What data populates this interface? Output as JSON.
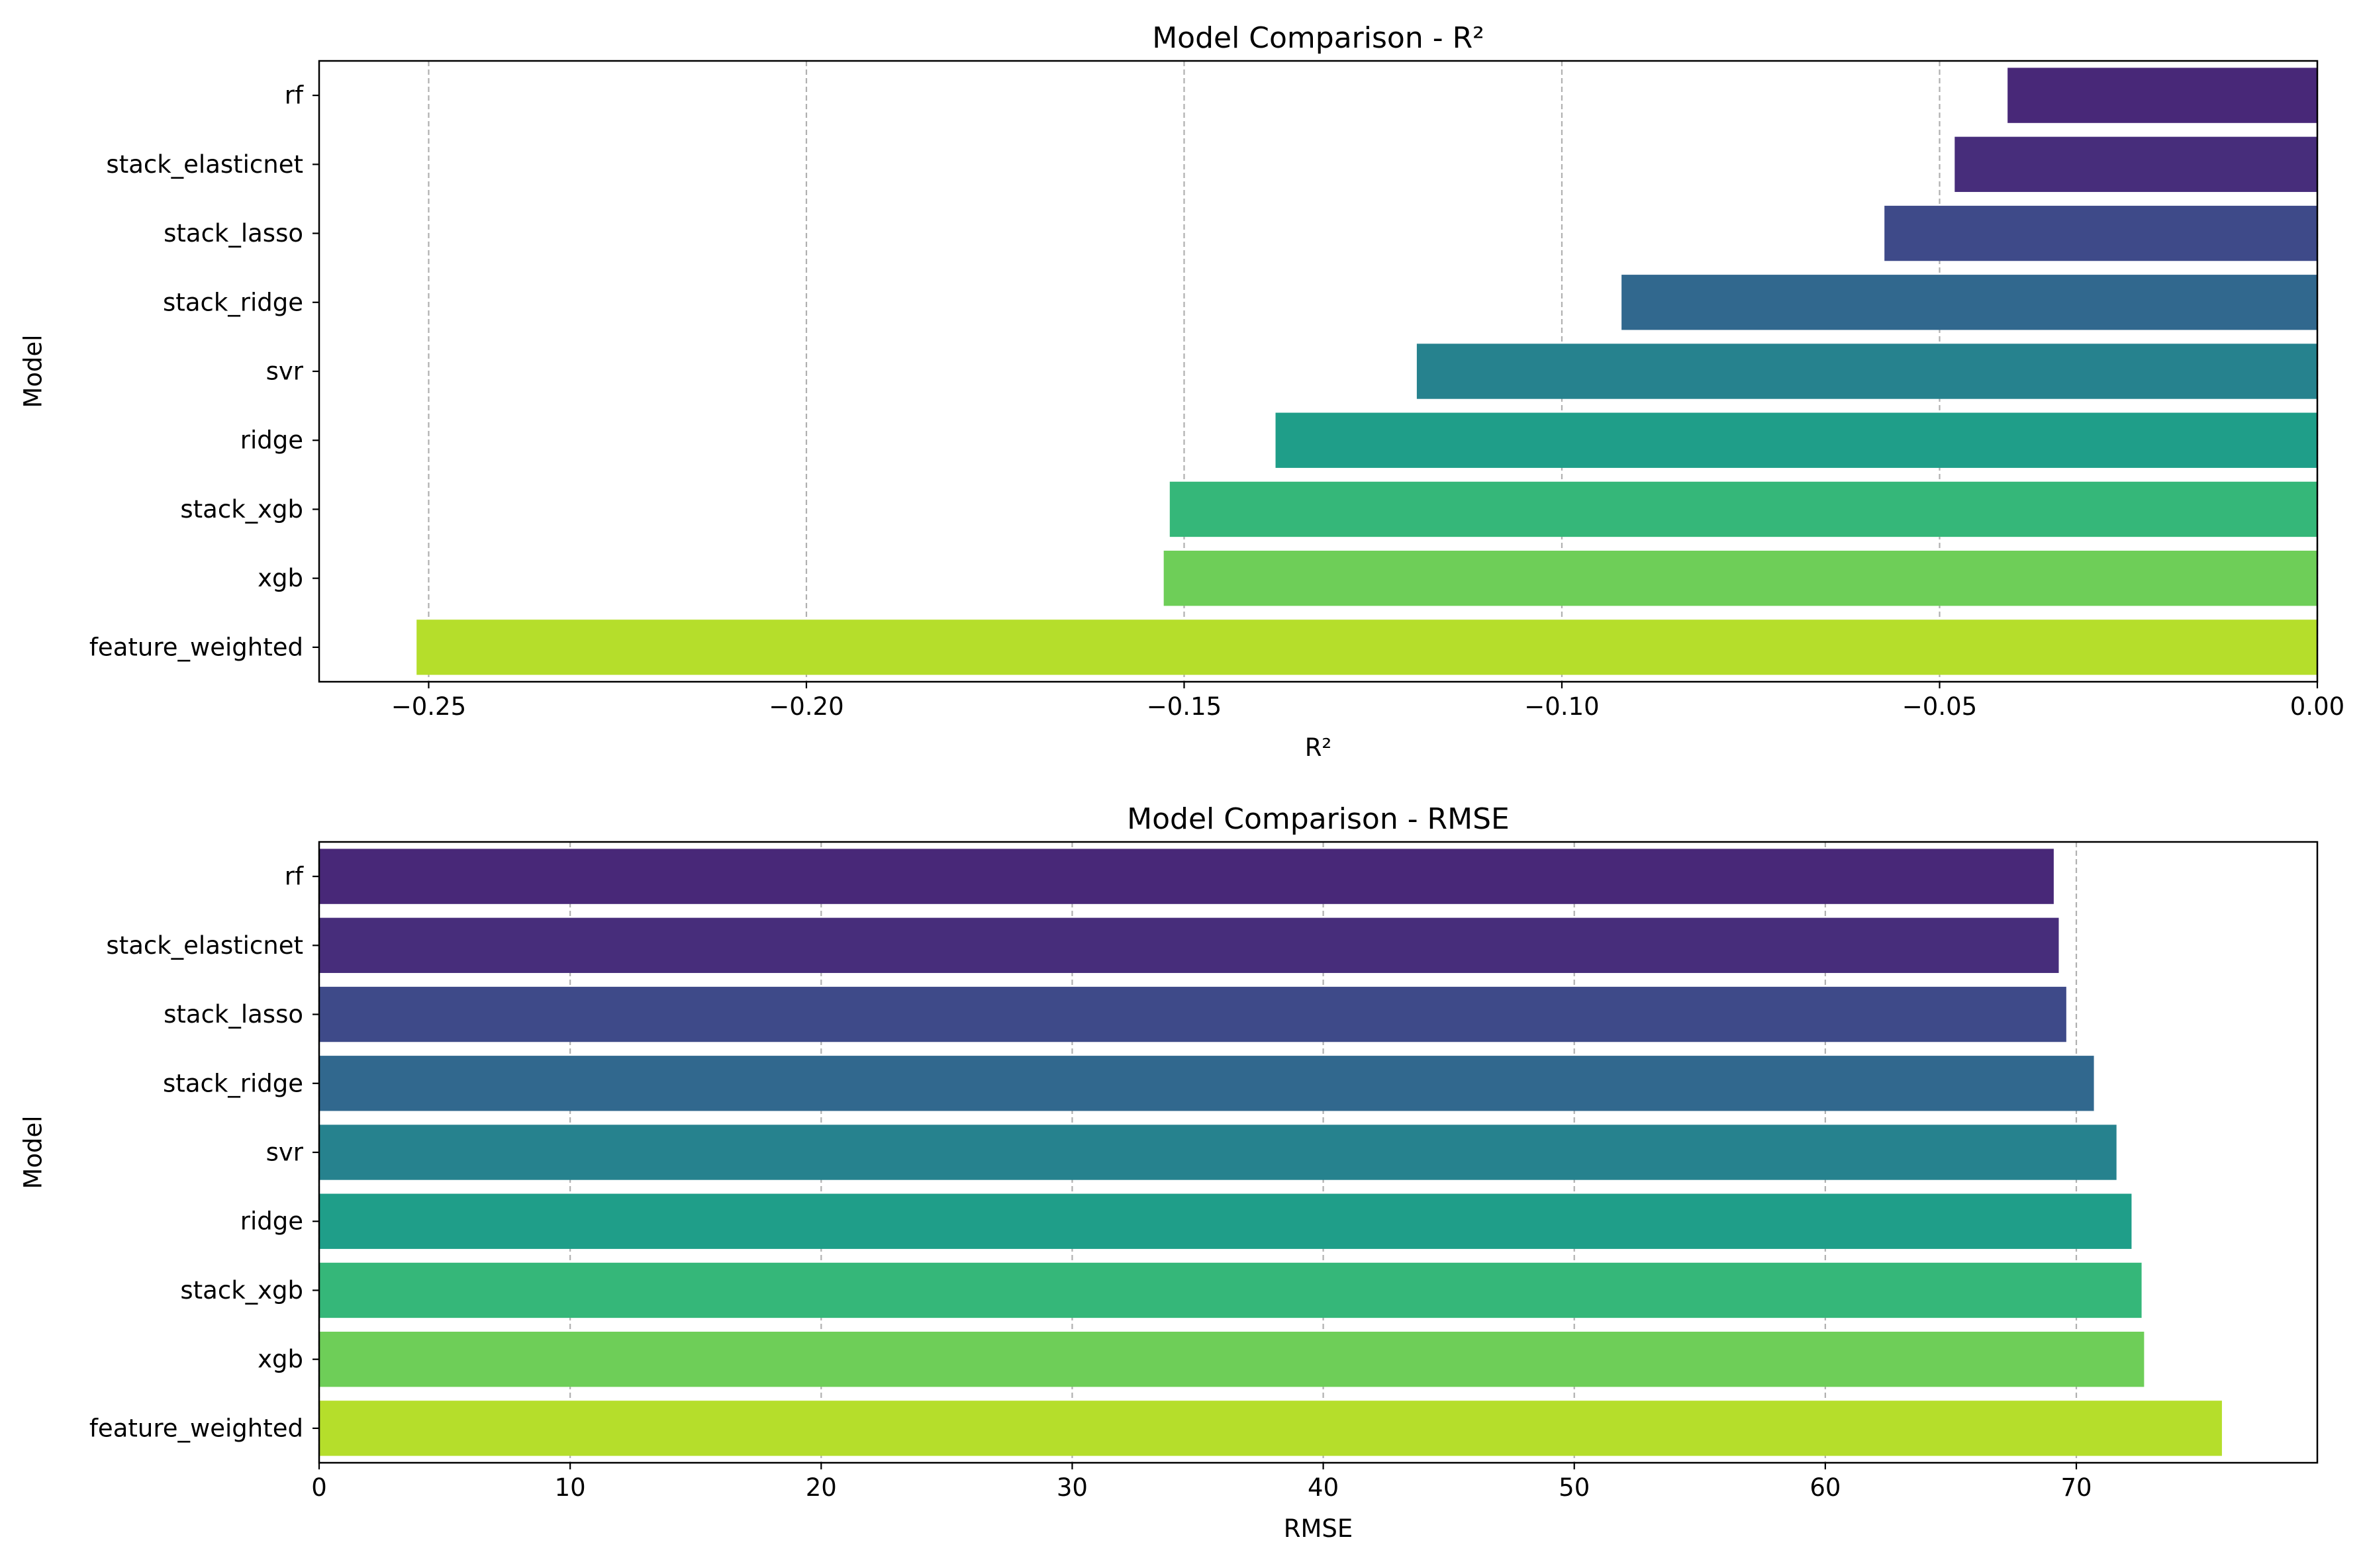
{
  "chart_data": [
    {
      "type": "bar",
      "orientation": "horizontal",
      "title": "Model Comparison - R²",
      "xlabel": "R²",
      "ylabel": "Model",
      "xlim": [
        -0.2645,
        0.0
      ],
      "x_ticks": [
        -0.25,
        -0.2,
        -0.15,
        -0.1,
        -0.05,
        0.0
      ],
      "x_tick_labels": [
        "−0.25",
        "−0.20",
        "−0.15",
        "−0.10",
        "−0.05",
        "0.00"
      ],
      "grid": "x",
      "categories": [
        "rf",
        "stack_elasticnet",
        "stack_lasso",
        "stack_ridge",
        "svr",
        "ridge",
        "stack_xgb",
        "xgb",
        "feature_weighted"
      ],
      "values": [
        -0.041,
        -0.048,
        -0.0573,
        -0.0921,
        -0.1192,
        -0.1379,
        -0.1519,
        -0.1527,
        -0.2516
      ],
      "colors": [
        "#482878",
        "#472d7b",
        "#3e4a89",
        "#31688e",
        "#26828e",
        "#1f9e89",
        "#35b779",
        "#6ece58",
        "#b5de2b"
      ]
    },
    {
      "type": "bar",
      "orientation": "horizontal",
      "title": "Model Comparison - RMSE",
      "xlabel": "RMSE",
      "ylabel": "Model",
      "xlim": [
        0,
        79.6
      ],
      "x_ticks": [
        0,
        10,
        20,
        30,
        40,
        50,
        60,
        70
      ],
      "x_tick_labels": [
        "0",
        "10",
        "20",
        "30",
        "40",
        "50",
        "60",
        "70"
      ],
      "grid": "x",
      "categories": [
        "rf",
        "stack_elasticnet",
        "stack_lasso",
        "stack_ridge",
        "svr",
        "ridge",
        "stack_xgb",
        "xgb",
        "feature_weighted"
      ],
      "values": [
        69.1,
        69.3,
        69.6,
        70.7,
        71.6,
        72.2,
        72.6,
        72.7,
        75.8
      ],
      "colors": [
        "#482878",
        "#472d7b",
        "#3e4a89",
        "#31688e",
        "#26828e",
        "#1f9e89",
        "#35b779",
        "#6ece58",
        "#b5de2b"
      ]
    }
  ]
}
